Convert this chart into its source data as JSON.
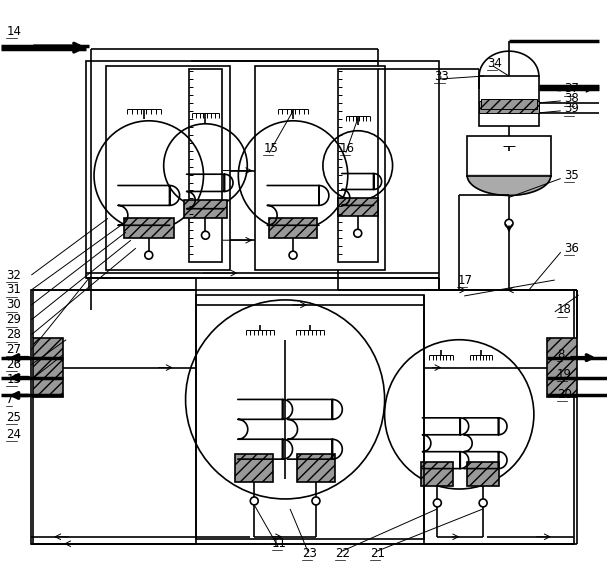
{
  "bg_color": "#ffffff",
  "line_color": "#000000",
  "label_color": "#000000",
  "lw": 1.2,
  "blw": 2.5,
  "tlw": 0.7,
  "fs": 8.5
}
